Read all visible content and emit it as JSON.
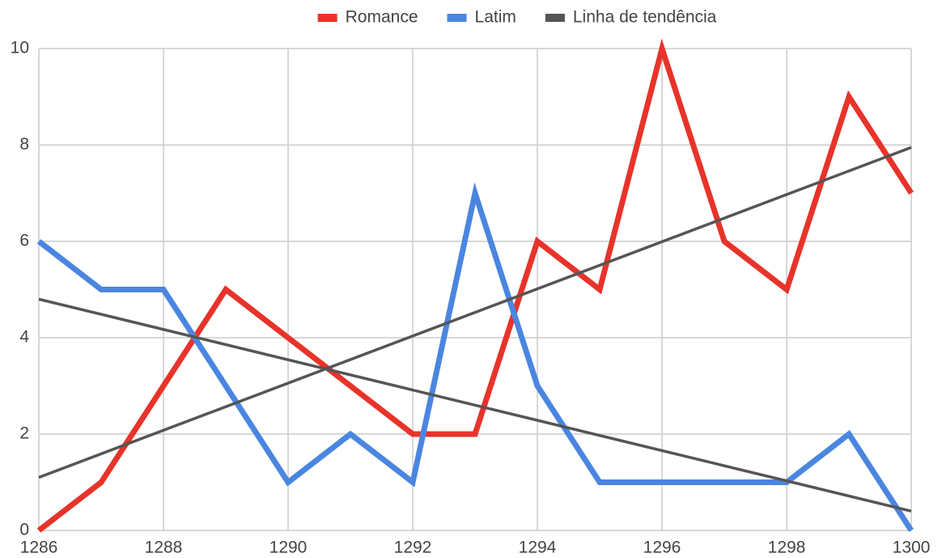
{
  "chart_data": {
    "type": "line",
    "x": [
      1286,
      1287,
      1288,
      1289,
      1290,
      1291,
      1292,
      1293,
      1294,
      1295,
      1296,
      1297,
      1298,
      1299,
      1300
    ],
    "series": [
      {
        "name": "Romance",
        "color": "#e8332a",
        "values": [
          0,
          1,
          3,
          5,
          4,
          3,
          2,
          2,
          6,
          5,
          10,
          6,
          5,
          9,
          7
        ]
      },
      {
        "name": "Latim",
        "color": "#4a86e0",
        "values": [
          6,
          5,
          5,
          3,
          1,
          2,
          1,
          7,
          3,
          1,
          1,
          1,
          1,
          2,
          0
        ]
      },
      {
        "name": "Linha de tendência",
        "color": "#555555",
        "trendlines": [
          [
            1.1,
            7.95
          ],
          [
            4.8,
            0.4
          ]
        ]
      }
    ],
    "xlim": [
      1286,
      1300
    ],
    "xticks": [
      1286,
      1288,
      1290,
      1292,
      1294,
      1296,
      1298,
      1300
    ],
    "ylim": [
      0,
      10
    ],
    "yticks": [
      0,
      2,
      4,
      6,
      8,
      10
    ],
    "grid": true,
    "legend": "top"
  }
}
